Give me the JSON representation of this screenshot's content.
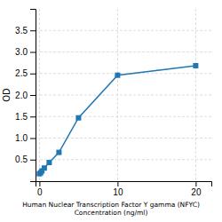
{
  "chart_data": {
    "type": "line",
    "xlabel": "Human Nuclear Transcription Factor Y gamma (NFYC)\nConcentration (ng/ml)",
    "ylabel": "OD",
    "x": [
      0,
      0.156,
      0.313,
      0.625,
      1.25,
      2.5,
      5,
      10,
      20
    ],
    "values": [
      0.172,
      0.196,
      0.238,
      0.305,
      0.432,
      0.668,
      1.47,
      2.46,
      2.68
    ],
    "marker": "square",
    "xlim": [
      -0.5,
      22
    ],
    "ylim": [
      0.0,
      4.0
    ],
    "xticks": [
      0,
      10,
      20
    ],
    "yticks": [
      0.5,
      {
        "value": 1.0,
        "label": "1.0"
      },
      1.5,
      {
        "value": 2.0,
        "label": "2.0"
      },
      2.5,
      {
        "value": 3.0,
        "label": "3.0"
      },
      3.5
    ],
    "grid": true
  }
}
